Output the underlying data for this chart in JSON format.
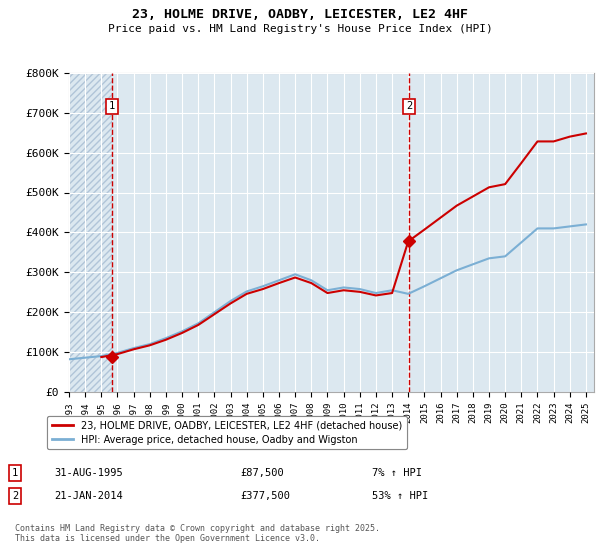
{
  "title1": "23, HOLME DRIVE, OADBY, LEICESTER, LE2 4HF",
  "title2": "Price paid vs. HM Land Registry's House Price Index (HPI)",
  "ylim": [
    0,
    800000
  ],
  "yticks": [
    0,
    100000,
    200000,
    300000,
    400000,
    500000,
    600000,
    700000,
    800000
  ],
  "ytick_labels": [
    "£0",
    "£100K",
    "£200K",
    "£300K",
    "£400K",
    "£500K",
    "£600K",
    "£700K",
    "£800K"
  ],
  "transaction1": {
    "year": 1995.66,
    "price": 87500,
    "label": "1",
    "date": "31-AUG-1995",
    "pct": "7%"
  },
  "transaction2": {
    "year": 2014.05,
    "price": 377500,
    "label": "2",
    "date": "21-JAN-2014",
    "pct": "53%"
  },
  "legend1": "23, HOLME DRIVE, OADBY, LEICESTER, LE2 4HF (detached house)",
  "legend2": "HPI: Average price, detached house, Oadby and Wigston",
  "footnote": "Contains HM Land Registry data © Crown copyright and database right 2025.\nThis data is licensed under the Open Government Licence v3.0.",
  "red_color": "#cc0000",
  "blue_color": "#7bafd4",
  "bg_color": "#dce8f0",
  "grid_color": "#ffffff",
  "hatch_color": "#b0c4d8",
  "xlim_start": 1993,
  "xlim_end": 2025.5,
  "hpi_years": [
    1993,
    1994,
    1995,
    1996,
    1997,
    1998,
    1999,
    2000,
    2001,
    2002,
    2003,
    2004,
    2005,
    2006,
    2007,
    2008,
    2009,
    2010,
    2011,
    2012,
    2013,
    2014,
    2015,
    2016,
    2017,
    2018,
    2019,
    2020,
    2021,
    2022,
    2023,
    2024,
    2025
  ],
  "hpi_vals": [
    82000,
    86000,
    90000,
    98000,
    110000,
    120000,
    135000,
    152000,
    172000,
    200000,
    228000,
    252000,
    265000,
    280000,
    295000,
    280000,
    255000,
    262000,
    258000,
    248000,
    255000,
    246000,
    265000,
    285000,
    305000,
    320000,
    335000,
    340000,
    375000,
    410000,
    410000,
    415000,
    420000
  ],
  "red_hpi_years": [
    1995,
    1996,
    1997,
    1998,
    1999,
    2000,
    2001,
    2002,
    2003,
    2004,
    2005,
    2006,
    2007,
    2008,
    2009,
    2010,
    2011,
    2012,
    2013,
    2014,
    2015,
    2016,
    2017,
    2018,
    2019,
    2020,
    2021,
    2022,
    2023,
    2024,
    2025
  ],
  "red_hpi_vals": [
    87500,
    95000,
    107000,
    117000,
    131000,
    148000,
    168000,
    195000,
    222000,
    246000,
    258000,
    273000,
    287000,
    273000,
    248000,
    255000,
    251000,
    242000,
    248000,
    377500,
    407000,
    437000,
    467000,
    490000,
    513000,
    521000,
    574000,
    628000,
    628000,
    640000,
    648000
  ]
}
